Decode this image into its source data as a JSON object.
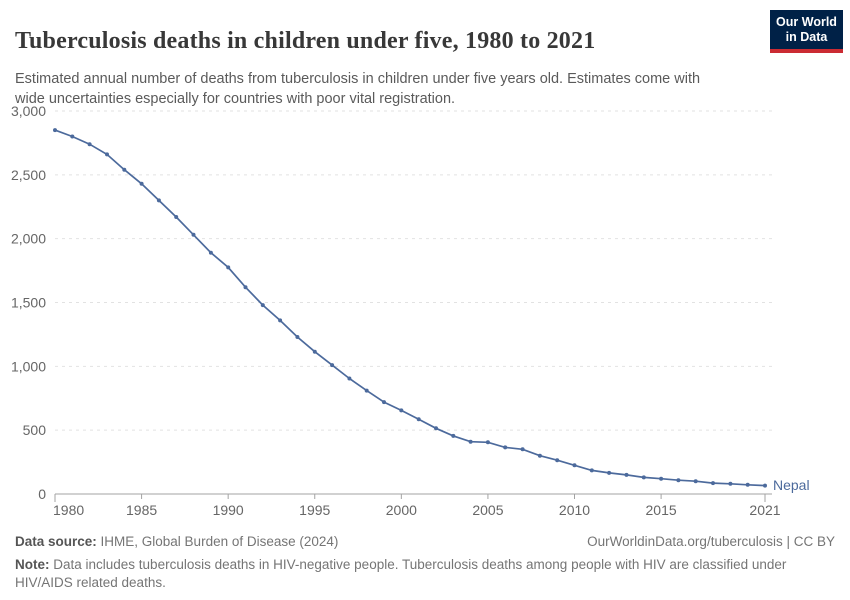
{
  "header": {
    "title": "Tuberculosis deaths in children under five, 1980 to 2021",
    "subtitle": "Estimated annual number of deaths from tuberculosis in children under five years old. Estimates come with wide uncertainties especially for countries with poor vital registration.",
    "logo": {
      "line1": "Our World",
      "line2": "in Data"
    }
  },
  "colors": {
    "series_blue": "#4C6A9C",
    "logo_bg": "#002147",
    "logo_stripe": "#cb2b33",
    "gridline": "#e2e2e2",
    "axis": "#a3a3a3",
    "tick_text": "#666666"
  },
  "chart_data": {
    "type": "line",
    "title": "Tuberculosis deaths in children under five, 1980 to 2021",
    "xlabel": "",
    "ylabel": "",
    "ylim": [
      0,
      3000
    ],
    "yticks": [
      0,
      500,
      1000,
      1500,
      2000,
      2500,
      3000
    ],
    "ytick_labels": [
      "0",
      "500",
      "1,000",
      "1,500",
      "2,000",
      "2,500",
      "3,000"
    ],
    "xticks": [
      1980,
      1985,
      1990,
      1995,
      2000,
      2005,
      2010,
      2015,
      2021
    ],
    "grid": "horizontal-dashed",
    "legend": "end-of-line-label",
    "x": [
      1980,
      1981,
      1982,
      1983,
      1984,
      1985,
      1986,
      1987,
      1988,
      1989,
      1990,
      1991,
      1992,
      1993,
      1994,
      1995,
      1996,
      1997,
      1998,
      1999,
      2000,
      2001,
      2002,
      2003,
      2004,
      2005,
      2006,
      2007,
      2008,
      2009,
      2010,
      2011,
      2012,
      2013,
      2014,
      2015,
      2016,
      2017,
      2018,
      2019,
      2020,
      2021
    ],
    "series": [
      {
        "name": "Nepal",
        "color": "#4C6A9C",
        "values": [
          2850,
          2800,
          2740,
          2660,
          2540,
          2430,
          2300,
          2170,
          2030,
          1890,
          1775,
          1620,
          1480,
          1360,
          1230,
          1115,
          1010,
          905,
          810,
          720,
          655,
          585,
          515,
          455,
          410,
          405,
          365,
          350,
          300,
          265,
          225,
          185,
          165,
          150,
          130,
          120,
          108,
          100,
          85,
          80,
          72,
          66
        ]
      }
    ]
  },
  "footer": {
    "source_label": "Data source:",
    "source": " IHME, Global Burden of Disease (2024)",
    "link": "OurWorldinData.org/tuberculosis | CC BY",
    "note_label": "Note:",
    "note": " Data includes tuberculosis deaths in HIV-negative people. Tuberculosis deaths among people with HIV are classified under HIV/AIDS related deaths."
  }
}
